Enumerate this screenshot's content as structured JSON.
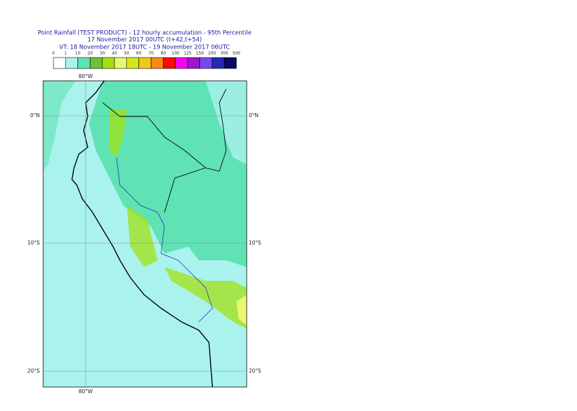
{
  "header": {
    "title": "Point Rainfall (TEST PRODUCT) - 12 hourly accumulation - 95th Percentile",
    "subtitle": "17 November 2017 00UTC (t+42,t+54)",
    "valid_time": "VT: 18 November 2017 18UTC - 19 November 2017 06UTC"
  },
  "legend": {
    "thresholds": [
      "0",
      "1",
      "10",
      "20",
      "30",
      "40",
      "50",
      "60",
      "70",
      "80",
      "100",
      "125",
      "150",
      "200",
      "300",
      "500"
    ],
    "colors": [
      "#ffffff",
      "#aaf2ee",
      "#5fe2b4",
      "#6cc23a",
      "#a2e016",
      "#e8f870",
      "#d6e61e",
      "#f2c81a",
      "#fa8c14",
      "#fa0a0a",
      "#f00af0",
      "#a014c8",
      "#7846f0",
      "#2828b4",
      "#0a0a64"
    ]
  },
  "map": {
    "lat_labels": [
      "0°N",
      "10°S",
      "20°S"
    ],
    "lon_labels": [
      "80°W"
    ]
  }
}
